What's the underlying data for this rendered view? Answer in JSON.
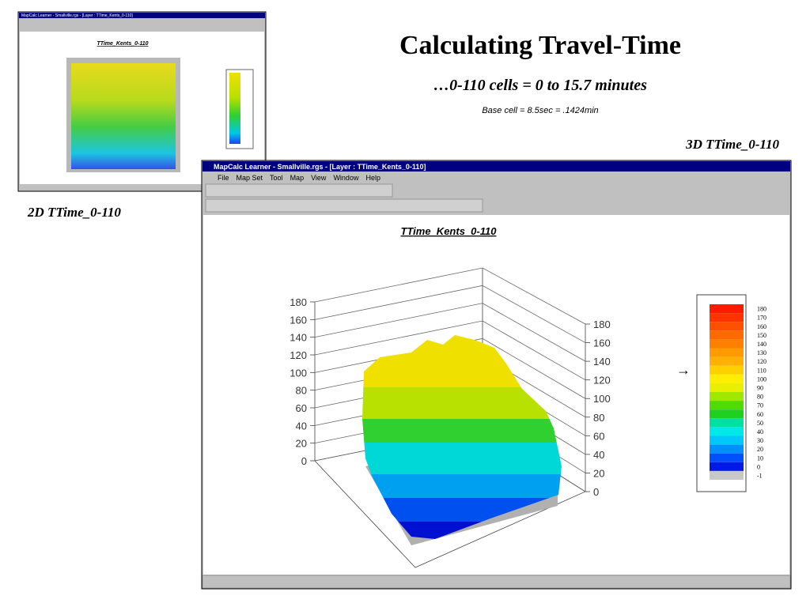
{
  "slide": {
    "title": "Calculating Travel-Time",
    "subtitle": "…0-110 cells = 0 to 15.7 minutes",
    "note": "Base cell = 8.5sec = .1424min",
    "label_3d": "3D TTime_0-110",
    "label_2d": "2D TTime_0-110"
  },
  "small_window": {
    "title_bar": "MapCalc Learner - Smallville.rgs - [Layer : TTime_Kents_0-110]",
    "map_title": "TTime_Kents_0-110"
  },
  "main_window": {
    "title_bar": "MapCalc Learner - Smallville.rgs - [Layer : TTime_Kents_0-110]",
    "menu": [
      "File",
      "Map Set",
      "Tool",
      "Map",
      "View",
      "Window",
      "Help"
    ],
    "map_title": "TTime_Kents_0-110",
    "left_axis_ticks": [
      0,
      20,
      40,
      60,
      80,
      100,
      120,
      140,
      160,
      180
    ],
    "right_axis_ticks": [
      0,
      20,
      40,
      60,
      80,
      100,
      120,
      140,
      160,
      180
    ],
    "legend": [
      {
        "label": 180,
        "color": "#ff1a00"
      },
      {
        "label": 170,
        "color": "#ff3300"
      },
      {
        "label": 160,
        "color": "#ff5000"
      },
      {
        "label": 150,
        "color": "#ff6a00"
      },
      {
        "label": 140,
        "color": "#ff8000"
      },
      {
        "label": 130,
        "color": "#ff9a00"
      },
      {
        "label": 120,
        "color": "#ffb000"
      },
      {
        "label": 110,
        "color": "#ffd000"
      },
      {
        "label": 100,
        "color": "#ffee00"
      },
      {
        "label": 90,
        "color": "#e8f000"
      },
      {
        "label": 80,
        "color": "#a0e800"
      },
      {
        "label": 70,
        "color": "#50dc00"
      },
      {
        "label": 60,
        "color": "#20d020"
      },
      {
        "label": 50,
        "color": "#00e0a0"
      },
      {
        "label": 40,
        "color": "#00e8e8"
      },
      {
        "label": 30,
        "color": "#00c8f8"
      },
      {
        "label": 20,
        "color": "#0090ff"
      },
      {
        "label": 10,
        "color": "#0050ff"
      },
      {
        "label": 0,
        "color": "#0018e8"
      },
      {
        "label": -1,
        "color": "#c8c8c8"
      }
    ]
  }
}
